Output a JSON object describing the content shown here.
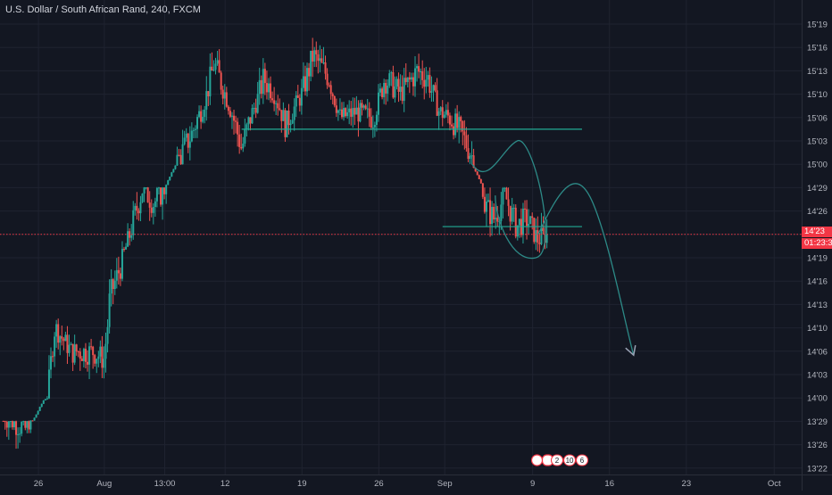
{
  "header": {
    "title": "U.S. Dollar / South African Rand, 240, FXCM"
  },
  "price_tag": {
    "value": "14'23",
    "countdown": "01:23:3"
  },
  "colors": {
    "background": "#131722",
    "bull": "#26a69a",
    "bear": "#ef5350",
    "level_line": "#22ab94",
    "price_line": "#f23645",
    "annotation": "#2d8a87",
    "grid": "#1f2330"
  },
  "chart_data": {
    "type": "candlestick",
    "title": "U.S. Dollar / South African Rand, 240, FXCM",
    "xlabel": "",
    "ylabel": "",
    "y_ticks": [
      {
        "label": "15'19",
        "value": 15.19
      },
      {
        "label": "15'16",
        "value": 15.16
      },
      {
        "label": "15'13",
        "value": 15.13
      },
      {
        "label": "15'10",
        "value": 15.1
      },
      {
        "label": "15'06",
        "value": 15.06
      },
      {
        "label": "15'03",
        "value": 15.03
      },
      {
        "label": "15'00",
        "value": 15.0
      },
      {
        "label": "14'29",
        "value": 14.29
      },
      {
        "label": "14'26",
        "value": 14.26
      },
      {
        "label": "14'19",
        "value": 14.19
      },
      {
        "label": "14'16",
        "value": 14.16
      },
      {
        "label": "14'13",
        "value": 14.13
      },
      {
        "label": "14'10",
        "value": 14.1
      },
      {
        "label": "14'06",
        "value": 14.06
      },
      {
        "label": "14'03",
        "value": 14.03
      },
      {
        "label": "14'00",
        "value": 14.0
      },
      {
        "label": "13'29",
        "value": 13.29
      },
      {
        "label": "13'26",
        "value": 13.26
      },
      {
        "label": "13'22",
        "value": 13.22
      }
    ],
    "x_ticks": [
      {
        "label": "26",
        "day": -6
      },
      {
        "label": "Aug",
        "day": 0
      },
      {
        "label": "13:00",
        "day": 5.5
      },
      {
        "label": "12",
        "day": 11
      },
      {
        "label": "19",
        "day": 18
      },
      {
        "label": "26",
        "day": 25
      },
      {
        "label": "Sep",
        "day": 31
      },
      {
        "label": "9",
        "day": 39
      },
      {
        "label": "16",
        "day": 46
      },
      {
        "label": "23",
        "day": 53
      },
      {
        "label": "Oct",
        "day": 61
      }
    ],
    "x_range_days": [
      -9.5,
      63.5
    ],
    "last_price": 14.23,
    "key_points": [
      {
        "day": -9.2,
        "close": 13.3
      },
      {
        "day": -7.2,
        "close": 13.28
      },
      {
        "day": -6.5,
        "close": 13.31
      },
      {
        "day": -5.5,
        "close": 13.95
      },
      {
        "day": -4.5,
        "close": 14.1
      },
      {
        "day": -3.0,
        "close": 14.06
      },
      {
        "day": -1.0,
        "close": 14.06
      },
      {
        "day": 0.0,
        "close": 14.05
      },
      {
        "day": 0.5,
        "close": 14.14
      },
      {
        "day": 1.5,
        "close": 14.18
      },
      {
        "day": 2.5,
        "close": 14.24
      },
      {
        "day": 3.5,
        "close": 14.29
      },
      {
        "day": 4.5,
        "close": 14.27
      },
      {
        "day": 5.5,
        "close": 14.29
      },
      {
        "day": 6.5,
        "close": 15.0
      },
      {
        "day": 8.0,
        "close": 15.04
      },
      {
        "day": 9.0,
        "close": 15.08
      },
      {
        "day": 10.0,
        "close": 15.14
      },
      {
        "day": 11.0,
        "close": 15.1
      },
      {
        "day": 12.5,
        "close": 15.02
      },
      {
        "day": 13.5,
        "close": 15.07
      },
      {
        "day": 14.5,
        "close": 15.12
      },
      {
        "day": 15.5,
        "close": 15.1
      },
      {
        "day": 16.5,
        "close": 15.05
      },
      {
        "day": 18.0,
        "close": 15.1
      },
      {
        "day": 19.0,
        "close": 15.15
      },
      {
        "day": 20.5,
        "close": 15.12
      },
      {
        "day": 21.5,
        "close": 15.06
      },
      {
        "day": 23.0,
        "close": 15.07
      },
      {
        "day": 24.5,
        "close": 15.06
      },
      {
        "day": 25.5,
        "close": 15.12
      },
      {
        "day": 27.0,
        "close": 15.1
      },
      {
        "day": 28.5,
        "close": 15.13
      },
      {
        "day": 29.5,
        "close": 15.12
      },
      {
        "day": 30.5,
        "close": 15.07
      },
      {
        "day": 31.5,
        "close": 15.06
      },
      {
        "day": 32.5,
        "close": 15.04
      },
      {
        "day": 33.5,
        "close": 15.01
      },
      {
        "day": 34.5,
        "close": 14.27
      },
      {
        "day": 35.5,
        "close": 14.25
      },
      {
        "day": 36.5,
        "close": 14.28
      },
      {
        "day": 37.5,
        "close": 14.24
      },
      {
        "day": 38.5,
        "close": 14.25
      },
      {
        "day": 39.5,
        "close": 14.22
      },
      {
        "day": 40.3,
        "close": 14.23
      }
    ],
    "support_resistance": [
      {
        "price": 15.045,
        "from_day": 12.5,
        "to_day": 43.5
      },
      {
        "price": 14.24,
        "from_day": 30.8,
        "to_day": 43.5
      }
    ],
    "badges": [
      "2",
      "10",
      "6"
    ]
  }
}
